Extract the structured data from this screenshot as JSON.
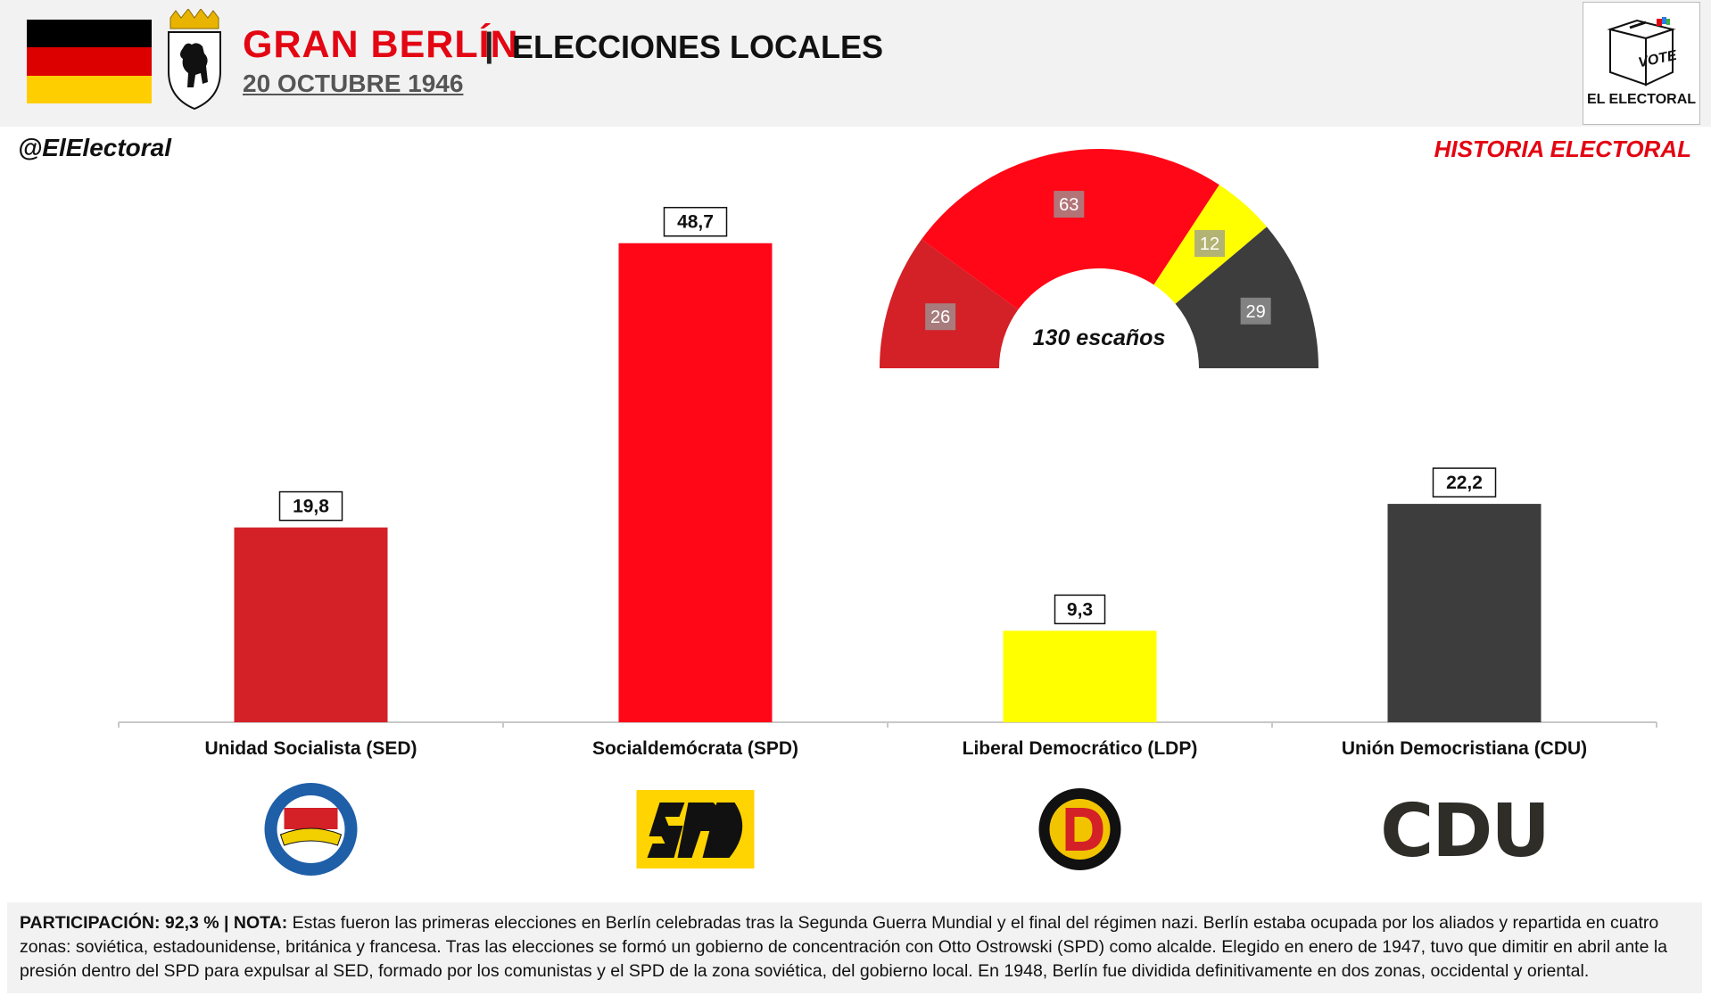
{
  "header": {
    "title_main": "GRAN BERLÍN",
    "title_separator": "|",
    "title_sub": "ELECCIONES LOCALES",
    "date": "20 OCTUBRE 1946",
    "brand": {
      "vote_label": "VOTE",
      "name": "EL ELECTORAL"
    }
  },
  "handle": "@ElElectoral",
  "section_label": "HISTORIA ELECTORAL",
  "colors": {
    "SED": "#d42027",
    "SPD": "#ff0717",
    "LDP": "#ffff00",
    "CDU": "#3d3d3d",
    "title_red": "#e30613"
  },
  "chart_data": [
    {
      "type": "bar",
      "categories": [
        "Unidad Socialista (SED)",
        "Socialdemócrata (SPD)",
        "Liberal Democrático (LDP)",
        "Unión Democristiana (CDU)"
      ],
      "values": [
        19.8,
        48.7,
        9.3,
        22.2
      ],
      "value_labels": [
        "19,8",
        "48,7",
        "9,3",
        "22,2"
      ],
      "colors": [
        "#d42027",
        "#ff0717",
        "#ffff00",
        "#3d3d3d"
      ],
      "ylim": [
        0,
        50
      ],
      "grid": false,
      "legend": "none",
      "party_logos": [
        "sed-logo",
        "spd-logo",
        "ldp-logo",
        "cdu-logo"
      ]
    },
    {
      "type": "pie",
      "variant": "half-donut",
      "order": [
        "SED",
        "SPD",
        "LDP",
        "CDU"
      ],
      "values": [
        26,
        63,
        12,
        29
      ],
      "labels": [
        "26",
        "63",
        "12",
        "29"
      ],
      "colors": [
        "#d42027",
        "#ff0717",
        "#ffff00",
        "#3d3d3d"
      ],
      "center_label": "130 escaños"
    }
  ],
  "footer": {
    "participation_label": "PARTICIPACIÓN:",
    "participation_value": "92,3 %",
    "separator": "|",
    "note_label": "NOTA:",
    "note_text": "Estas fueron las primeras elecciones en Berlín celebradas tras la Segunda Guerra Mundial y el final del régimen nazi. Berlín estaba ocupada por los aliados y repartida en cuatro zonas: soviética, estadounidense, británica y francesa. Tras las elecciones se formó un gobierno de concentración con Otto Ostrowski (SPD) como alcalde. Elegido en enero de 1947, tuvo que dimitir en abril ante la presión dentro del SPD para expulsar al SED, formado por los comunistas y el SPD de la zona soviética, del gobierno local. En 1948, Berlín fue dividida definitivamente en dos zonas, occidental y oriental."
  }
}
